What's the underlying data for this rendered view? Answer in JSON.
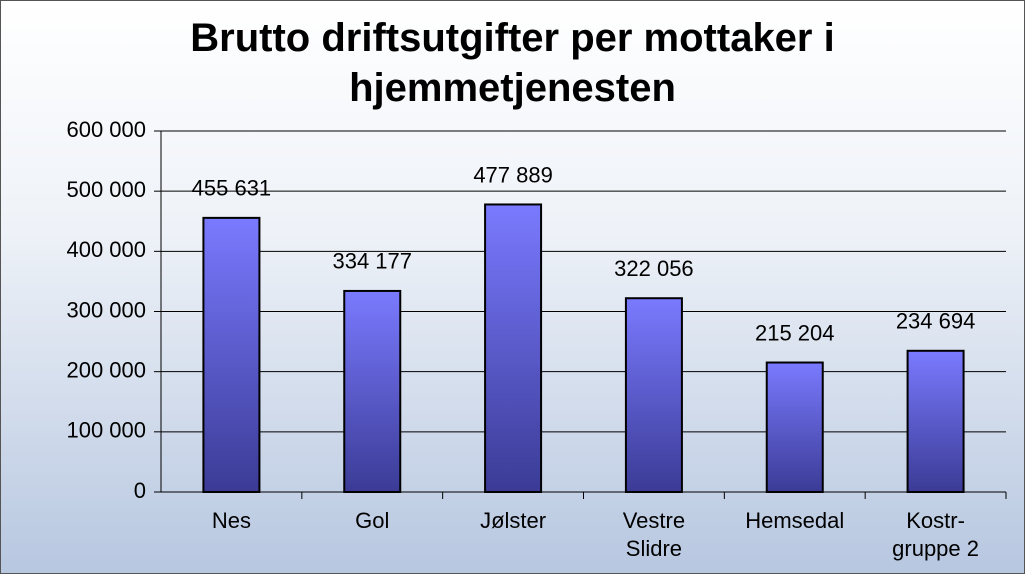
{
  "chart_data": {
    "type": "bar",
    "title": "Brutto driftsutgifter per mottaker i\nhjemmetjenesten",
    "categories": [
      "Nes",
      "Gol",
      "Jølster",
      "Vestre\nSlidre",
      "Hemsedal",
      "Kostr-\ngruppe 2"
    ],
    "values": [
      455631,
      334177,
      477889,
      322056,
      215204,
      234694
    ],
    "value_labels": [
      "455 631",
      "334 177",
      "477 889",
      "322 056",
      "215 204",
      "234 694"
    ],
    "color": "#6b6bf0",
    "ylim": [
      0,
      600000
    ],
    "yticks": [
      {
        "value": 0,
        "label": "0"
      },
      {
        "value": 100000,
        "label": "100 000"
      },
      {
        "value": 200000,
        "label": "200 000"
      },
      {
        "value": 300000,
        "label": "300 000"
      },
      {
        "value": 400000,
        "label": "400 000"
      },
      {
        "value": 500000,
        "label": "500 000"
      },
      {
        "value": 600000,
        "label": "600 000"
      }
    ],
    "grid": true
  }
}
